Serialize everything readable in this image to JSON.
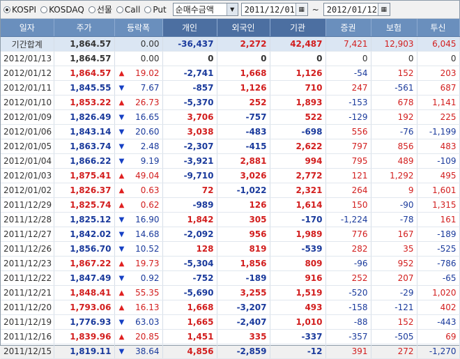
{
  "toolbar": {
    "radios": [
      {
        "label": "KOSPI",
        "selected": true
      },
      {
        "label": "KOSDAQ",
        "selected": false
      },
      {
        "label": "선물",
        "selected": false
      },
      {
        "label": "Call",
        "selected": false
      },
      {
        "label": "Put",
        "selected": false
      }
    ],
    "select_value": "순매수금액",
    "date_from": "2011/12/01",
    "tilde": "~",
    "date_to": "2012/01/12"
  },
  "headers": [
    "일자",
    "주가",
    "등락폭",
    "개인",
    "외국인",
    "기관",
    "증권",
    "보험",
    "투신"
  ],
  "rows": [
    {
      "date": "기간합계",
      "price": "1,864.57",
      "dir": "none",
      "change": "0.00",
      "indiv": "-36,437",
      "foreign": "2,272",
      "inst": "42,487",
      "sec": "7,421",
      "ins": "12,903",
      "trust": "6,045",
      "summary": true
    },
    {
      "date": "2012/01/13",
      "price": "1,864.57",
      "dir": "none",
      "change": "0.00",
      "indiv": "0",
      "foreign": "0",
      "inst": "0",
      "sec": "0",
      "ins": "0",
      "trust": "0"
    },
    {
      "date": "2012/01/12",
      "price": "1,864.57",
      "dir": "up",
      "change": "19.02",
      "indiv": "-2,741",
      "foreign": "1,668",
      "inst": "1,126",
      "sec": "-54",
      "ins": "152",
      "trust": "203"
    },
    {
      "date": "2012/01/11",
      "price": "1,845.55",
      "dir": "down",
      "change": "7.67",
      "indiv": "-857",
      "foreign": "1,126",
      "inst": "710",
      "sec": "247",
      "ins": "-561",
      "trust": "687"
    },
    {
      "date": "2012/01/10",
      "price": "1,853.22",
      "dir": "up",
      "change": "26.73",
      "indiv": "-5,370",
      "foreign": "252",
      "inst": "1,893",
      "sec": "-153",
      "ins": "678",
      "trust": "1,141"
    },
    {
      "date": "2012/01/09",
      "price": "1,826.49",
      "dir": "down",
      "change": "16.65",
      "indiv": "3,706",
      "foreign": "-757",
      "inst": "522",
      "sec": "-129",
      "ins": "192",
      "trust": "225"
    },
    {
      "date": "2012/01/06",
      "price": "1,843.14",
      "dir": "down",
      "change": "20.60",
      "indiv": "3,038",
      "foreign": "-483",
      "inst": "-698",
      "sec": "556",
      "ins": "-76",
      "trust": "-1,199"
    },
    {
      "date": "2012/01/05",
      "price": "1,863.74",
      "dir": "down",
      "change": "2.48",
      "indiv": "-2,307",
      "foreign": "-415",
      "inst": "2,622",
      "sec": "797",
      "ins": "856",
      "trust": "483"
    },
    {
      "date": "2012/01/04",
      "price": "1,866.22",
      "dir": "down",
      "change": "9.19",
      "indiv": "-3,921",
      "foreign": "2,881",
      "inst": "994",
      "sec": "795",
      "ins": "489",
      "trust": "-109"
    },
    {
      "date": "2012/01/03",
      "price": "1,875.41",
      "dir": "up",
      "change": "49.04",
      "indiv": "-9,710",
      "foreign": "3,026",
      "inst": "2,772",
      "sec": "121",
      "ins": "1,292",
      "trust": "495"
    },
    {
      "date": "2012/01/02",
      "price": "1,826.37",
      "dir": "up",
      "change": "0.63",
      "indiv": "72",
      "foreign": "-1,022",
      "inst": "2,321",
      "sec": "264",
      "ins": "9",
      "trust": "1,601"
    },
    {
      "date": "2011/12/29",
      "price": "1,825.74",
      "dir": "up",
      "change": "0.62",
      "indiv": "-989",
      "foreign": "126",
      "inst": "1,614",
      "sec": "150",
      "ins": "-90",
      "trust": "1,315"
    },
    {
      "date": "2011/12/28",
      "price": "1,825.12",
      "dir": "down",
      "change": "16.90",
      "indiv": "1,842",
      "foreign": "305",
      "inst": "-170",
      "sec": "-1,224",
      "ins": "-78",
      "trust": "161"
    },
    {
      "date": "2011/12/27",
      "price": "1,842.02",
      "dir": "down",
      "change": "14.68",
      "indiv": "-2,092",
      "foreign": "956",
      "inst": "1,989",
      "sec": "776",
      "ins": "167",
      "trust": "-189"
    },
    {
      "date": "2011/12/26",
      "price": "1,856.70",
      "dir": "down",
      "change": "10.52",
      "indiv": "128",
      "foreign": "819",
      "inst": "-539",
      "sec": "282",
      "ins": "35",
      "trust": "-525"
    },
    {
      "date": "2011/12/23",
      "price": "1,867.22",
      "dir": "up",
      "change": "19.73",
      "indiv": "-5,304",
      "foreign": "1,856",
      "inst": "809",
      "sec": "-96",
      "ins": "952",
      "trust": "-786"
    },
    {
      "date": "2011/12/22",
      "price": "1,847.49",
      "dir": "down",
      "change": "0.92",
      "indiv": "-752",
      "foreign": "-189",
      "inst": "916",
      "sec": "252",
      "ins": "207",
      "trust": "-65"
    },
    {
      "date": "2011/12/21",
      "price": "1,848.41",
      "dir": "up",
      "change": "55.35",
      "indiv": "-5,690",
      "foreign": "3,255",
      "inst": "1,519",
      "sec": "-520",
      "ins": "-29",
      "trust": "1,020"
    },
    {
      "date": "2011/12/20",
      "price": "1,793.06",
      "dir": "up",
      "change": "16.13",
      "indiv": "1,668",
      "foreign": "-3,207",
      "inst": "493",
      "sec": "-158",
      "ins": "-121",
      "trust": "402"
    },
    {
      "date": "2011/12/19",
      "price": "1,776.93",
      "dir": "down",
      "change": "63.03",
      "indiv": "1,665",
      "foreign": "-2,407",
      "inst": "1,010",
      "sec": "-88",
      "ins": "152",
      "trust": "-443"
    },
    {
      "date": "2011/12/16",
      "price": "1,839.96",
      "dir": "up",
      "change": "20.85",
      "indiv": "1,451",
      "foreign": "335",
      "inst": "-337",
      "sec": "-357",
      "ins": "-505",
      "trust": "69"
    },
    {
      "date": "2011/12/15",
      "price": "1,819.11",
      "dir": "down",
      "change": "38.64",
      "indiv": "4,856",
      "foreign": "-2,859",
      "inst": "-12",
      "sec": "391",
      "ins": "272",
      "trust": "-1,270"
    }
  ],
  "colors": {
    "header": "#6a8fbd",
    "header_selected": "#4c6fa1",
    "summary_row": "#dbe6f3",
    "up": "#d21e1e",
    "down": "#1a3a9c"
  }
}
